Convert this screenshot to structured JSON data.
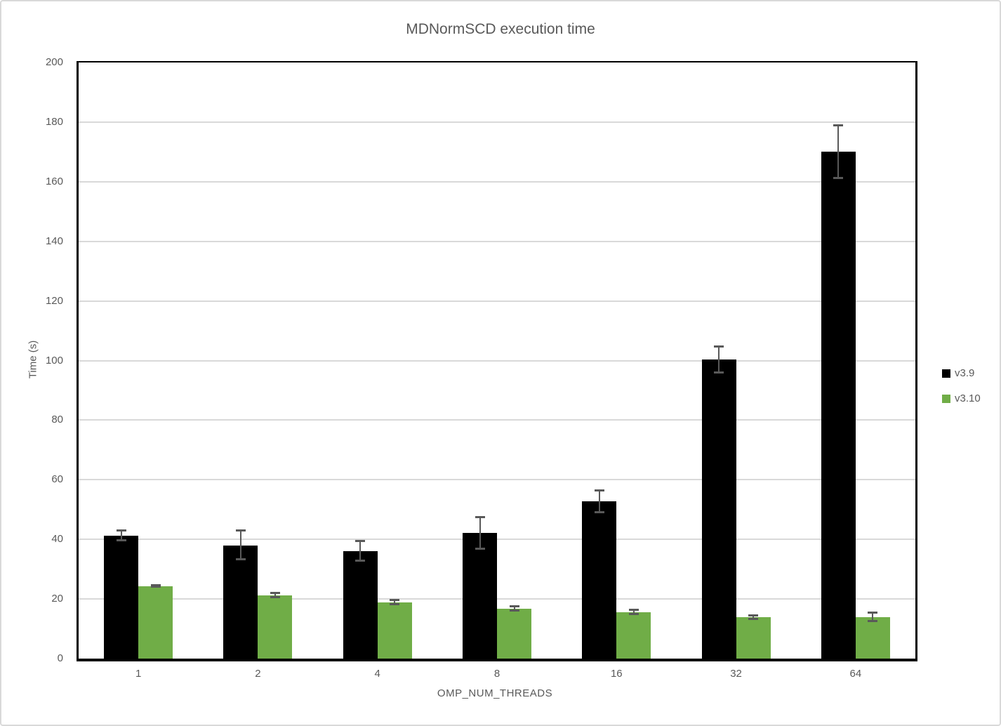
{
  "chart_data": {
    "type": "bar",
    "title": "MDNormSCD execution time",
    "xlabel": "OMP_NUM_THREADS",
    "ylabel": "Time (s)",
    "categories": [
      "1",
      "2",
      "4",
      "8",
      "16",
      "32",
      "64"
    ],
    "series": [
      {
        "name": "v3.9",
        "color": "#000000",
        "values": [
          41.2,
          38.0,
          36.0,
          42.1,
          52.7,
          100.3,
          170.0
        ],
        "error_bars": [
          1.9,
          5.0,
          3.5,
          5.6,
          3.9,
          4.6,
          9.0
        ]
      },
      {
        "name": "v3.10",
        "color": "#70AD47",
        "values": [
          24.2,
          21.2,
          18.9,
          16.7,
          15.5,
          13.8,
          13.9
        ],
        "error_bars": [
          0.5,
          0.9,
          0.9,
          1.0,
          1.0,
          0.8,
          1.6
        ]
      }
    ],
    "ylim": [
      0,
      200
    ],
    "ytick_step": 20,
    "grid": true,
    "legend_position": "right",
    "error_bar_color": "#595959",
    "text_color": "#595959",
    "gridline_color": "#D9D9D9",
    "axis_color": "#000000"
  }
}
